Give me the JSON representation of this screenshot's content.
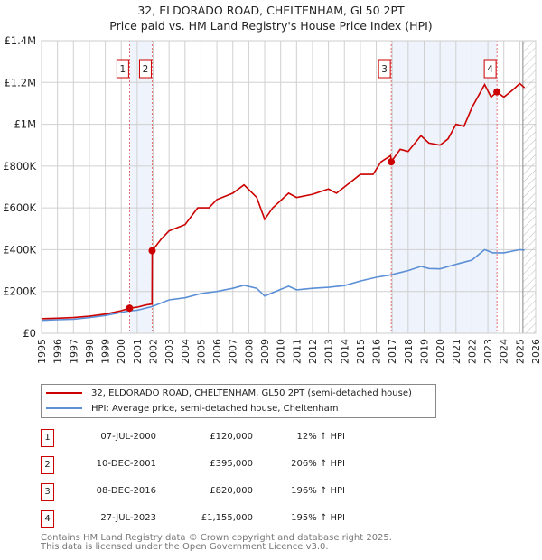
{
  "title": "32, ELDORADO ROAD, CHELTENHAM, GL50 2PT",
  "subtitle": "Price paid vs. HM Land Registry's House Price Index (HPI)",
  "chart_data": {
    "type": "line",
    "title": "32, ELDORADO ROAD, CHELTENHAM, GL50 2PT — Price paid vs. HM Land Registry's House Price Index (HPI)",
    "xlim": [
      1995,
      2026
    ],
    "ylim": [
      0,
      1400000
    ],
    "x_ticks": [
      "1995",
      "1996",
      "1997",
      "1998",
      "1999",
      "2000",
      "2001",
      "2002",
      "2003",
      "2004",
      "2005",
      "2006",
      "2007",
      "2008",
      "2009",
      "2010",
      "2011",
      "2012",
      "2013",
      "2014",
      "2015",
      "2016",
      "2017",
      "2018",
      "2019",
      "2020",
      "2021",
      "2022",
      "2023",
      "2024",
      "2025",
      "2026"
    ],
    "y_ticks": [
      {
        "value": 0,
        "label": "£0"
      },
      {
        "value": 200000,
        "label": "£200K"
      },
      {
        "value": 400000,
        "label": "£400K"
      },
      {
        "value": 600000,
        "label": "£600K"
      },
      {
        "value": 800000,
        "label": "£800K"
      },
      {
        "value": 1000000,
        "label": "£1M"
      },
      {
        "value": 1200000,
        "label": "£1.2M"
      },
      {
        "value": 1400000,
        "label": "£1.4M"
      }
    ],
    "grid": true,
    "forecast_hatch_from": 2025.2,
    "series": [
      {
        "name": "32, ELDORADO ROAD, CHELTENHAM, GL50 2PT (semi-detached house)",
        "color": "#cc0000",
        "x": [
          1995,
          1996,
          1997,
          1998,
          1999,
          2000,
          2000.52,
          2001,
          2001.5,
          2001.93,
          2001.94,
          2002.5,
          2003,
          2004,
          2004.8,
          2005.5,
          2006,
          2007,
          2007.7,
          2008.5,
          2009,
          2009.5,
          2010.5,
          2011,
          2012,
          2013,
          2013.5,
          2014,
          2015,
          2015.8,
          2016.3,
          2016.9,
          2016.94,
          2017.5,
          2018,
          2018.8,
          2019.3,
          2020,
          2020.5,
          2021,
          2021.5,
          2022,
          2022.8,
          2023.2,
          2023.57,
          2024,
          2024.5,
          2025,
          2025.3
        ],
        "y": [
          70000,
          72000,
          75000,
          82000,
          92000,
          108000,
          120000,
          125000,
          135000,
          140000,
          395000,
          450000,
          490000,
          520000,
          600000,
          600000,
          640000,
          670000,
          710000,
          650000,
          545000,
          600000,
          670000,
          650000,
          665000,
          690000,
          670000,
          700000,
          760000,
          760000,
          820000,
          850000,
          820000,
          880000,
          870000,
          945000,
          910000,
          900000,
          930000,
          1000000,
          990000,
          1080000,
          1190000,
          1130000,
          1155000,
          1130000,
          1160000,
          1195000,
          1175000
        ]
      },
      {
        "name": "HPI: Average price, semi-detached house, Cheltenham",
        "color": "#5b8fd6",
        "x": [
          1995,
          1996,
          1997,
          1998,
          1999,
          2000,
          2000.5,
          2001,
          2001.94,
          2003,
          2004,
          2005,
          2006,
          2007,
          2007.7,
          2008.5,
          2009,
          2010,
          2010.5,
          2011,
          2012,
          2013,
          2014,
          2015,
          2016,
          2016.94,
          2018,
          2018.8,
          2019.3,
          2020,
          2021,
          2022,
          2022.8,
          2023.3,
          2024,
          2025,
          2025.3
        ],
        "y": [
          62000,
          65000,
          67000,
          75000,
          85000,
          100000,
          107000,
          110000,
          128000,
          160000,
          170000,
          190000,
          200000,
          215000,
          230000,
          215000,
          178000,
          210000,
          225000,
          208000,
          215000,
          220000,
          228000,
          250000,
          268000,
          280000,
          300000,
          320000,
          310000,
          308000,
          330000,
          350000,
          400000,
          385000,
          385000,
          400000,
          398000
        ]
      }
    ],
    "sales": [
      {
        "id": "1",
        "x": 2000.52,
        "y": 120000
      },
      {
        "id": "2",
        "x": 2001.94,
        "y": 395000
      },
      {
        "id": "3",
        "x": 2016.94,
        "y": 820000
      },
      {
        "id": "4",
        "x": 2023.57,
        "y": 1155000
      }
    ],
    "shaded_ranges": [
      [
        2000.52,
        2001.94
      ],
      [
        2016.94,
        2023.57
      ]
    ]
  },
  "legend": {
    "property": "32, ELDORADO ROAD, CHELTENHAM, GL50 2PT (semi-detached house)",
    "hpi": "HPI: Average price, semi-detached house, Cheltenham"
  },
  "transactions": [
    {
      "id": "1",
      "date": "07-JUL-2000",
      "price": "£120,000",
      "hpi": "12% ↑ HPI"
    },
    {
      "id": "2",
      "date": "10-DEC-2001",
      "price": "£395,000",
      "hpi": "206% ↑ HPI"
    },
    {
      "id": "3",
      "date": "08-DEC-2016",
      "price": "£820,000",
      "hpi": "196% ↑ HPI"
    },
    {
      "id": "4",
      "date": "27-JUL-2023",
      "price": "£1,155,000",
      "hpi": "195% ↑ HPI"
    }
  ],
  "footer": {
    "line1": "Contains HM Land Registry data © Crown copyright and database right 2025.",
    "line2": "This data is licensed under the Open Government Licence v3.0."
  }
}
